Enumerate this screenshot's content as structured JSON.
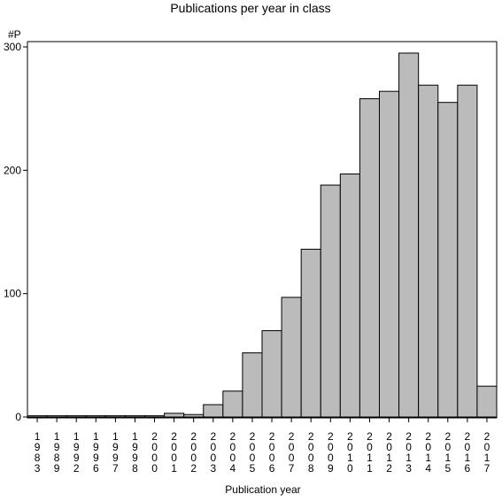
{
  "chart_data": {
    "type": "bar",
    "title": "Publications per year in class",
    "xlabel": "Publication year",
    "ylabel": "#P",
    "ylim": [
      0,
      300
    ],
    "yticks": [
      0,
      100,
      200,
      300
    ],
    "grid": false,
    "categories": [
      "1983",
      "1989",
      "1992",
      "1996",
      "1997",
      "1998",
      "2000",
      "2001",
      "2002",
      "2003",
      "2004",
      "2005",
      "2006",
      "2007",
      "2008",
      "2009",
      "2010",
      "2011",
      "2012",
      "2013",
      "2014",
      "2015",
      "2016",
      "2017"
    ],
    "values": [
      1,
      1,
      1,
      1,
      1,
      1,
      1,
      3,
      2,
      10,
      21,
      52,
      70,
      97,
      136,
      188,
      197,
      258,
      264,
      295,
      269,
      255,
      269,
      25
    ],
    "colors": {
      "bar": "#bbbbbb",
      "stroke": "#000000"
    }
  }
}
